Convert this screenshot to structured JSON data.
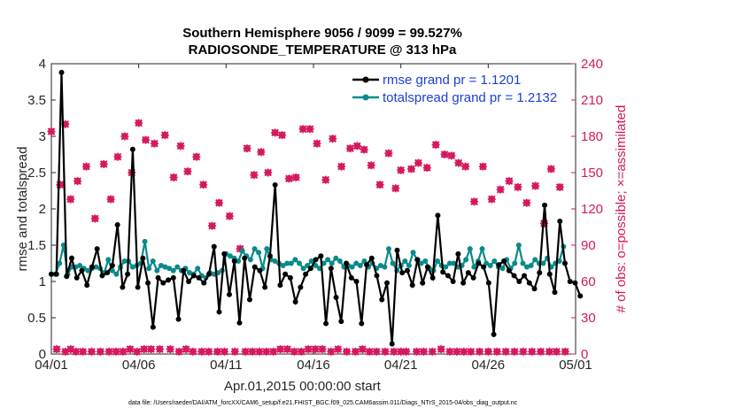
{
  "chart_data": {
    "type": "line",
    "title_line1": "Southern Hemisphere 9056 / 9099 = 99.527%",
    "title_line2": "RADIOSONDE_TEMPERATURE @ 313 hPa",
    "xlabel": "Apr.01,2015 00:00:00 start",
    "ylabel_left": "rmse and totalspread",
    "ylabel_right": "# of obs: o=possible; ×=assimilated",
    "footnote": "data file: /Users/raeder/DAI/ATM_forcXX/CAM6_setup/f.e21.FHIST_BGC.f09_025.CAM6assim.011/Diags_NTrS_2015-04/obs_diag_output.nc",
    "x_ticks": [
      {
        "day": 0,
        "label": "04/01"
      },
      {
        "day": 5,
        "label": "04/06"
      },
      {
        "day": 10,
        "label": "04/11"
      },
      {
        "day": 15,
        "label": "04/16"
      },
      {
        "day": 20,
        "label": "04/21"
      },
      {
        "day": 25,
        "label": "04/26"
      },
      {
        "day": 30,
        "label": "05/01"
      }
    ],
    "xlim": [
      0,
      30
    ],
    "ylim_left": [
      0,
      4
    ],
    "y_ticks_left": [
      "0",
      "0.5",
      "1",
      "1.5",
      "2",
      "2.5",
      "3",
      "3.5",
      "4"
    ],
    "ylim_right": [
      0,
      240
    ],
    "y_ticks_right": [
      "0",
      "30",
      "60",
      "90",
      "120",
      "150",
      "180",
      "210",
      "240"
    ],
    "series": [
      {
        "name": "rmse grand pr = 1.1201",
        "color": "#000000",
        "values": [
          1.1,
          1.1,
          3.88,
          1.07,
          1.32,
          1.05,
          1.15,
          0.95,
          1.2,
          1.45,
          1.08,
          1.12,
          1.22,
          1.78,
          0.92,
          1.1,
          2.82,
          0.92,
          1.32,
          0.98,
          0.37,
          1.05,
          0.98,
          1.02,
          1.05,
          0.48,
          1.15,
          1.0,
          1.08,
          1.05,
          0.98,
          1.1,
          1.48,
          0.58,
          1.38,
          0.82,
          1.28,
          0.43,
          1.32,
          0.75,
          1.2,
          1.15,
          0.92,
          1.35,
          2.33,
          0.95,
          1.1,
          1.05,
          0.72,
          0.92,
          1.1,
          1.18,
          1.3,
          1.35,
          0.42,
          1.18,
          0.78,
          0.45,
          1.25,
          1.05,
          1.0,
          0.42,
          1.23,
          1.32,
          1.08,
          0.75,
          0.98,
          0.14,
          1.43,
          1.12,
          1.15,
          0.95,
          1.3,
          0.98,
          1.2,
          1.05,
          1.91,
          1.13,
          1.08,
          1.0,
          1.38,
          0.98,
          1.12,
          1.05,
          1.25,
          1.2,
          0.98,
          0.27,
          1.23,
          1.28,
          1.15,
          1.08,
          1.0,
          1.08,
          0.98,
          0.9,
          1.12,
          2.05,
          1.1,
          0.85,
          1.83,
          1.25,
          1.0,
          0.98,
          0.8
        ],
        "start_day": 0.0,
        "step": 0.291
      },
      {
        "name": "totalspread grand pr = 1.2132",
        "color": "#0b8a8a",
        "values": [
          1.1,
          1.1,
          1.25,
          1.5,
          1.1,
          1.2,
          1.2,
          1.22,
          1.18,
          1.15,
          1.18,
          1.2,
          1.18,
          1.12,
          1.3,
          1.15,
          1.1,
          1.2,
          1.28,
          1.28,
          1.2,
          1.22,
          1.25,
          1.55,
          1.18,
          1.28,
          1.15,
          1.22,
          1.2,
          1.18,
          1.15,
          1.2,
          1.15,
          1.18,
          1.12,
          1.1,
          1.18,
          1.08,
          1.05,
          1.12,
          1.1,
          1.12,
          1.15,
          1.38,
          1.35,
          1.32,
          1.28,
          1.42,
          1.35,
          1.3,
          1.45,
          1.4,
          1.18,
          1.45,
          1.3,
          1.28,
          1.25,
          1.22,
          1.25,
          1.25,
          1.3,
          1.25,
          1.18,
          1.22,
          1.28,
          1.22,
          1.18,
          1.25,
          1.3,
          1.25,
          1.32,
          1.28,
          1.2,
          1.22,
          1.2,
          1.25,
          1.22,
          1.28,
          1.2,
          1.25,
          1.18,
          1.22,
          1.2,
          1.45,
          1.25,
          1.15,
          1.22,
          1.28,
          1.22,
          1.4,
          1.3,
          1.25,
          1.28,
          1.18,
          1.15,
          1.28,
          1.22,
          1.2,
          1.25,
          1.25,
          1.2,
          1.22,
          1.3,
          1.45,
          1.2,
          1.28,
          1.45,
          1.25,
          1.22,
          1.28,
          1.2,
          1.18,
          1.3,
          1.18,
          1.25,
          1.5,
          1.25,
          1.2,
          1.22,
          1.3,
          1.25,
          1.25,
          1.32,
          1.2,
          1.25,
          1.28,
          1.48
        ],
        "start_day": 0.0,
        "step": 0.2326
      }
    ],
    "obs_possible": {
      "name": "possible",
      "color": "#d6175f",
      "day_values": [
        [
          0.0,
          184
        ],
        [
          0.5,
          140
        ],
        [
          0.8,
          190
        ],
        [
          1.1,
          128
        ],
        [
          1.5,
          143
        ],
        [
          2.0,
          155
        ],
        [
          2.5,
          112
        ],
        [
          3.0,
          157
        ],
        [
          3.4,
          128
        ],
        [
          3.8,
          163
        ],
        [
          4.2,
          180
        ],
        [
          4.6,
          150
        ],
        [
          5.0,
          191
        ],
        [
          5.4,
          177
        ],
        [
          5.9,
          174
        ],
        [
          6.5,
          181
        ],
        [
          7.0,
          146
        ],
        [
          7.4,
          172
        ],
        [
          7.8,
          151
        ],
        [
          8.3,
          163
        ],
        [
          8.7,
          140
        ],
        [
          9.2,
          106
        ],
        [
          9.6,
          125
        ],
        [
          10.2,
          114
        ],
        [
          10.8,
          87
        ],
        [
          11.2,
          170
        ],
        [
          11.6,
          148
        ],
        [
          12.0,
          167
        ],
        [
          12.4,
          150
        ],
        [
          12.8,
          183
        ],
        [
          13.2,
          181
        ],
        [
          13.6,
          145
        ],
        [
          14.0,
          146
        ],
        [
          14.4,
          186
        ],
        [
          14.8,
          186
        ],
        [
          15.2,
          174
        ],
        [
          15.7,
          144
        ],
        [
          16.1,
          178
        ],
        [
          16.6,
          155
        ],
        [
          17.1,
          170
        ],
        [
          17.5,
          172
        ],
        [
          17.9,
          169
        ],
        [
          18.3,
          156
        ],
        [
          18.8,
          140
        ],
        [
          19.3,
          166
        ],
        [
          19.7,
          137
        ],
        [
          20.0,
          152
        ],
        [
          20.6,
          153
        ],
        [
          21.0,
          158
        ],
        [
          21.5,
          154
        ],
        [
          22.0,
          173
        ],
        [
          22.5,
          165
        ],
        [
          22.9,
          164
        ],
        [
          23.3,
          158
        ],
        [
          23.7,
          155
        ],
        [
          24.2,
          126
        ],
        [
          24.7,
          155
        ],
        [
          25.2,
          128
        ],
        [
          25.7,
          136
        ],
        [
          26.2,
          143
        ],
        [
          26.7,
          138
        ],
        [
          27.2,
          125
        ],
        [
          27.7,
          139
        ],
        [
          28.2,
          108
        ],
        [
          28.6,
          153
        ],
        [
          29.1,
          138
        ]
      ]
    },
    "obs_assimilated": {
      "name": "assimilated",
      "color": "#d6175f"
    },
    "legend": {
      "position": "top-right",
      "rmse_label": "rmse grand pr = 1.1201",
      "spread_label": "totalspread grand pr = 1.2132"
    }
  }
}
